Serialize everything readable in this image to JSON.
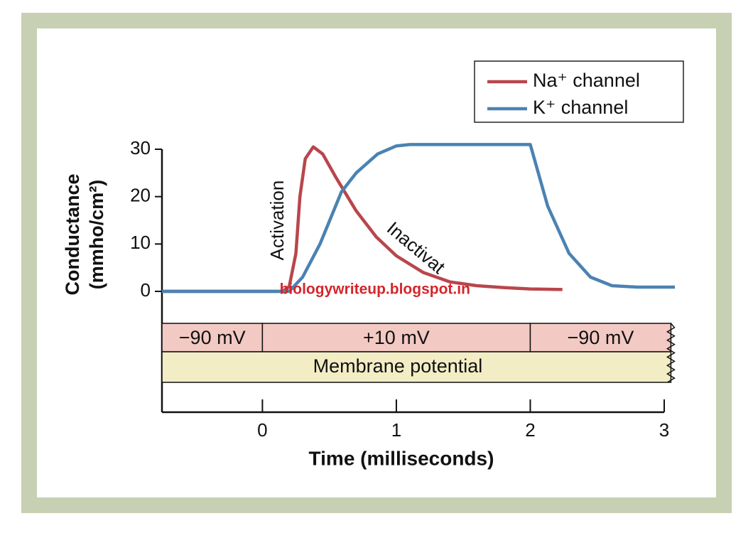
{
  "chart_data": {
    "type": "line",
    "ylabel": [
      "Conductance",
      "(mmho/cm²)"
    ],
    "xlabel": "Time (milliseconds)",
    "xlim": [
      -0.75,
      3
    ],
    "xticks": [
      0,
      1,
      2,
      3
    ],
    "ylim": [
      0,
      30
    ],
    "yticks": [
      0,
      10,
      20,
      30
    ],
    "legend": "top-right",
    "series": [
      {
        "name": "Na⁺ channel",
        "color": "#b8464c",
        "x": [
          -0.75,
          0.15,
          0.2,
          0.25,
          0.28,
          0.32,
          0.38,
          0.45,
          0.55,
          0.7,
          0.85,
          1.0,
          1.2,
          1.4,
          1.6,
          1.8,
          2.0,
          2.24
        ],
        "values": [
          0,
          0,
          1,
          8,
          20,
          28,
          30.5,
          29,
          24,
          17,
          11.5,
          7.5,
          4,
          2,
          1.2,
          0.8,
          0.5,
          0.4
        ]
      },
      {
        "name": "K⁺ channel",
        "color": "#4b82b2",
        "x": [
          -0.75,
          0.2,
          0.3,
          0.43,
          0.59,
          0.7,
          0.86,
          1.0,
          1.1,
          2.0,
          2.13,
          2.29,
          2.45,
          2.61,
          2.8,
          3.08
        ],
        "values": [
          0,
          0,
          3,
          10,
          21,
          25,
          29,
          30.7,
          31,
          31,
          18,
          8,
          3,
          1.2,
          0.9,
          0.9
        ]
      }
    ],
    "annotations": [
      {
        "text": "Activation",
        "x": 0.12,
        "y": 15
      },
      {
        "text": "Inactivat",
        "x": 1.14,
        "y": 9
      },
      {
        "text": "biologywriteup.blogspot.in",
        "x": 0.84,
        "y": 0.3
      }
    ],
    "membrane": {
      "label": "Membrane potential",
      "segments": [
        {
          "label": "−90 mV",
          "start": -0.75,
          "end": 0
        },
        {
          "label": "+10 mV",
          "start": 0,
          "end": 2
        },
        {
          "label": "−90 mV",
          "start": 2,
          "end": 3.05
        }
      ]
    }
  }
}
